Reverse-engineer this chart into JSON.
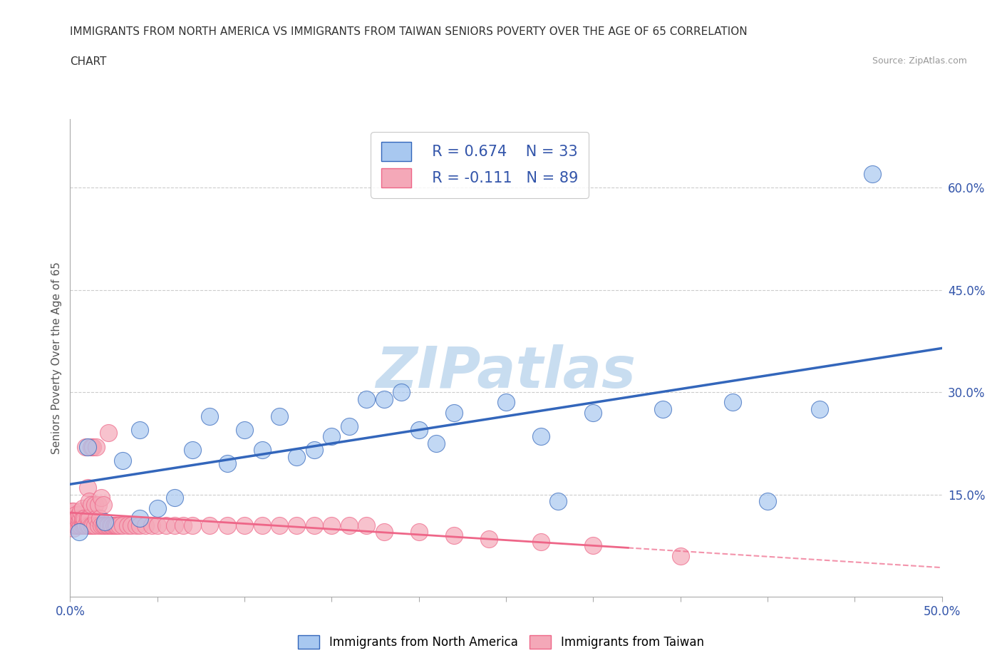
{
  "title_line1": "IMMIGRANTS FROM NORTH AMERICA VS IMMIGRANTS FROM TAIWAN SENIORS POVERTY OVER THE AGE OF 65 CORRELATION",
  "title_line2": "CHART",
  "source": "Source: ZipAtlas.com",
  "ylabel": "Seniors Poverty Over the Age of 65",
  "xmin": 0.0,
  "xmax": 0.5,
  "ymin": 0.0,
  "ymax": 0.7,
  "xticks": [
    0.0,
    0.05,
    0.1,
    0.15,
    0.2,
    0.25,
    0.3,
    0.35,
    0.4,
    0.45,
    0.5
  ],
  "xtick_labels": [
    "0.0%",
    "",
    "",
    "",
    "",
    "",
    "",
    "",
    "",
    "",
    "50.0%"
  ],
  "ytick_positions": [
    0.15,
    0.3,
    0.45,
    0.6
  ],
  "ytick_labels": [
    "15.0%",
    "30.0%",
    "45.0%",
    "60.0%"
  ],
  "blue_R": "R = 0.674",
  "blue_N": "N = 33",
  "pink_R": "R = -0.111",
  "pink_N": "N = 89",
  "blue_color": "#a8c8f0",
  "pink_color": "#f4a8b8",
  "blue_line_color": "#3366bb",
  "pink_line_color": "#ee6688",
  "pink_line_solid_end": 0.32,
  "watermark": "ZIPatlas",
  "watermark_color": "#c8ddf0",
  "blue_scatter_x": [
    0.005,
    0.01,
    0.02,
    0.03,
    0.04,
    0.04,
    0.05,
    0.06,
    0.07,
    0.08,
    0.09,
    0.1,
    0.11,
    0.12,
    0.13,
    0.14,
    0.15,
    0.16,
    0.17,
    0.18,
    0.19,
    0.2,
    0.21,
    0.22,
    0.25,
    0.27,
    0.28,
    0.3,
    0.34,
    0.38,
    0.4,
    0.43,
    0.46
  ],
  "blue_scatter_y": [
    0.095,
    0.22,
    0.11,
    0.2,
    0.115,
    0.245,
    0.13,
    0.145,
    0.215,
    0.265,
    0.195,
    0.245,
    0.215,
    0.265,
    0.205,
    0.215,
    0.235,
    0.25,
    0.29,
    0.29,
    0.3,
    0.245,
    0.225,
    0.27,
    0.285,
    0.235,
    0.14,
    0.27,
    0.275,
    0.285,
    0.14,
    0.275,
    0.62
  ],
  "pink_scatter_x": [
    0.001,
    0.001,
    0.001,
    0.002,
    0.002,
    0.002,
    0.003,
    0.003,
    0.003,
    0.003,
    0.004,
    0.004,
    0.005,
    0.005,
    0.005,
    0.005,
    0.006,
    0.006,
    0.006,
    0.007,
    0.007,
    0.007,
    0.007,
    0.008,
    0.008,
    0.008,
    0.009,
    0.009,
    0.01,
    0.01,
    0.01,
    0.011,
    0.011,
    0.011,
    0.012,
    0.012,
    0.012,
    0.013,
    0.013,
    0.014,
    0.014,
    0.015,
    0.015,
    0.016,
    0.016,
    0.017,
    0.018,
    0.018,
    0.019,
    0.019,
    0.02,
    0.021,
    0.022,
    0.022,
    0.023,
    0.024,
    0.025,
    0.026,
    0.027,
    0.028,
    0.03,
    0.033,
    0.035,
    0.038,
    0.04,
    0.043,
    0.047,
    0.05,
    0.055,
    0.06,
    0.065,
    0.07,
    0.08,
    0.09,
    0.1,
    0.11,
    0.12,
    0.13,
    0.14,
    0.15,
    0.16,
    0.17,
    0.18,
    0.2,
    0.22,
    0.24,
    0.27,
    0.3,
    0.35
  ],
  "pink_scatter_y": [
    0.105,
    0.115,
    0.125,
    0.1,
    0.115,
    0.125,
    0.105,
    0.11,
    0.115,
    0.12,
    0.105,
    0.115,
    0.105,
    0.11,
    0.115,
    0.12,
    0.105,
    0.115,
    0.125,
    0.105,
    0.11,
    0.115,
    0.13,
    0.105,
    0.11,
    0.115,
    0.105,
    0.22,
    0.105,
    0.115,
    0.16,
    0.105,
    0.115,
    0.14,
    0.105,
    0.135,
    0.22,
    0.105,
    0.22,
    0.105,
    0.135,
    0.115,
    0.22,
    0.105,
    0.135,
    0.115,
    0.105,
    0.145,
    0.105,
    0.135,
    0.105,
    0.105,
    0.105,
    0.24,
    0.105,
    0.105,
    0.105,
    0.105,
    0.105,
    0.105,
    0.105,
    0.105,
    0.105,
    0.105,
    0.105,
    0.105,
    0.105,
    0.105,
    0.105,
    0.105,
    0.105,
    0.105,
    0.105,
    0.105,
    0.105,
    0.105,
    0.105,
    0.105,
    0.105,
    0.105,
    0.105,
    0.105,
    0.095,
    0.095,
    0.09,
    0.085,
    0.08,
    0.075,
    0.06
  ]
}
